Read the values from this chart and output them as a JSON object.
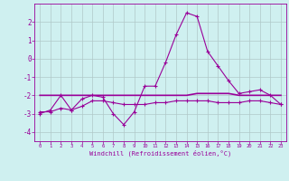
{
  "x": [
    0,
    1,
    2,
    3,
    4,
    5,
    6,
    7,
    8,
    9,
    10,
    11,
    12,
    13,
    14,
    15,
    16,
    17,
    18,
    19,
    20,
    21,
    22,
    23
  ],
  "line1": [
    -3.0,
    -2.8,
    -2.0,
    -2.8,
    -2.2,
    -2.0,
    -2.1,
    -3.0,
    -3.6,
    -2.9,
    -1.5,
    -1.5,
    -0.2,
    1.3,
    2.5,
    2.3,
    0.4,
    -0.4,
    -1.2,
    -1.9,
    -1.8,
    -1.7,
    -2.0,
    -2.5
  ],
  "line2": [
    -2.0,
    -2.0,
    -2.0,
    -2.0,
    -2.0,
    -2.0,
    -2.0,
    -2.0,
    -2.0,
    -2.0,
    -2.0,
    -2.0,
    -2.0,
    -2.0,
    -2.0,
    -1.9,
    -1.9,
    -1.9,
    -1.9,
    -2.0,
    -2.0,
    -2.0,
    -2.0,
    -2.0
  ],
  "line3": [
    -2.9,
    -2.9,
    -2.7,
    -2.8,
    -2.6,
    -2.3,
    -2.3,
    -2.4,
    -2.5,
    -2.5,
    -2.5,
    -2.4,
    -2.4,
    -2.3,
    -2.3,
    -2.3,
    -2.3,
    -2.4,
    -2.4,
    -2.4,
    -2.3,
    -2.3,
    -2.4,
    -2.5
  ],
  "line_color": "#990099",
  "bg_color": "#cff0f0",
  "grid_color": "#b0c8c8",
  "xlabel": "Windchill (Refroidissement éolien,°C)",
  "xlim": [
    -0.5,
    23.5
  ],
  "ylim": [
    -4.5,
    3.0
  ],
  "yticks": [
    -4,
    -3,
    -2,
    -1,
    0,
    1,
    2
  ],
  "xticks": [
    0,
    1,
    2,
    3,
    4,
    5,
    6,
    7,
    8,
    9,
    10,
    11,
    12,
    13,
    14,
    15,
    16,
    17,
    18,
    19,
    20,
    21,
    22,
    23
  ]
}
